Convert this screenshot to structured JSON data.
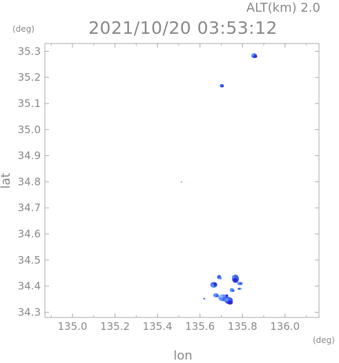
{
  "header": {
    "altitude_label": "ALT(km) 2.0",
    "datetime": "2021/10/20 03:53:12"
  },
  "axes": {
    "x_label": "lon",
    "y_label": "lat",
    "x_unit": "(deg)",
    "y_unit": "(deg)",
    "x_ticks": [
      "135.0",
      "135.2",
      "135.4",
      "135.6",
      "135.8",
      "136.0"
    ],
    "y_ticks": [
      "35.3",
      "35.2",
      "35.1",
      "35.0",
      "34.9",
      "34.8",
      "34.7",
      "34.6",
      "34.5",
      "34.4",
      "34.3"
    ]
  },
  "colors": {
    "frame": "#aaaaaa",
    "echo_light": "#5b8ff9",
    "echo_mid": "#3d5ff2",
    "echo_dark": "#2a2ad8",
    "echo_pale": "#8fb6ff"
  },
  "chart_data": {
    "type": "scatter",
    "x_range": [
      134.87,
      136.16
    ],
    "y_range": [
      34.28,
      35.33
    ],
    "echoes": [
      {
        "lon": 135.855,
        "lat": 35.283
      },
      {
        "lon": 135.703,
        "lat": 35.168
      },
      {
        "lon": 135.513,
        "lat": 34.799
      },
      {
        "lon": 135.69,
        "lat": 34.435
      },
      {
        "lon": 135.767,
        "lat": 34.428
      },
      {
        "lon": 135.788,
        "lat": 34.41
      },
      {
        "lon": 135.665,
        "lat": 34.405
      },
      {
        "lon": 135.75,
        "lat": 34.385
      },
      {
        "lon": 135.71,
        "lat": 34.355
      },
      {
        "lon": 135.735,
        "lat": 34.345
      },
      {
        "lon": 135.675,
        "lat": 34.365
      },
      {
        "lon": 135.62,
        "lat": 34.352
      },
      {
        "lon": 135.785,
        "lat": 34.39
      }
    ]
  }
}
